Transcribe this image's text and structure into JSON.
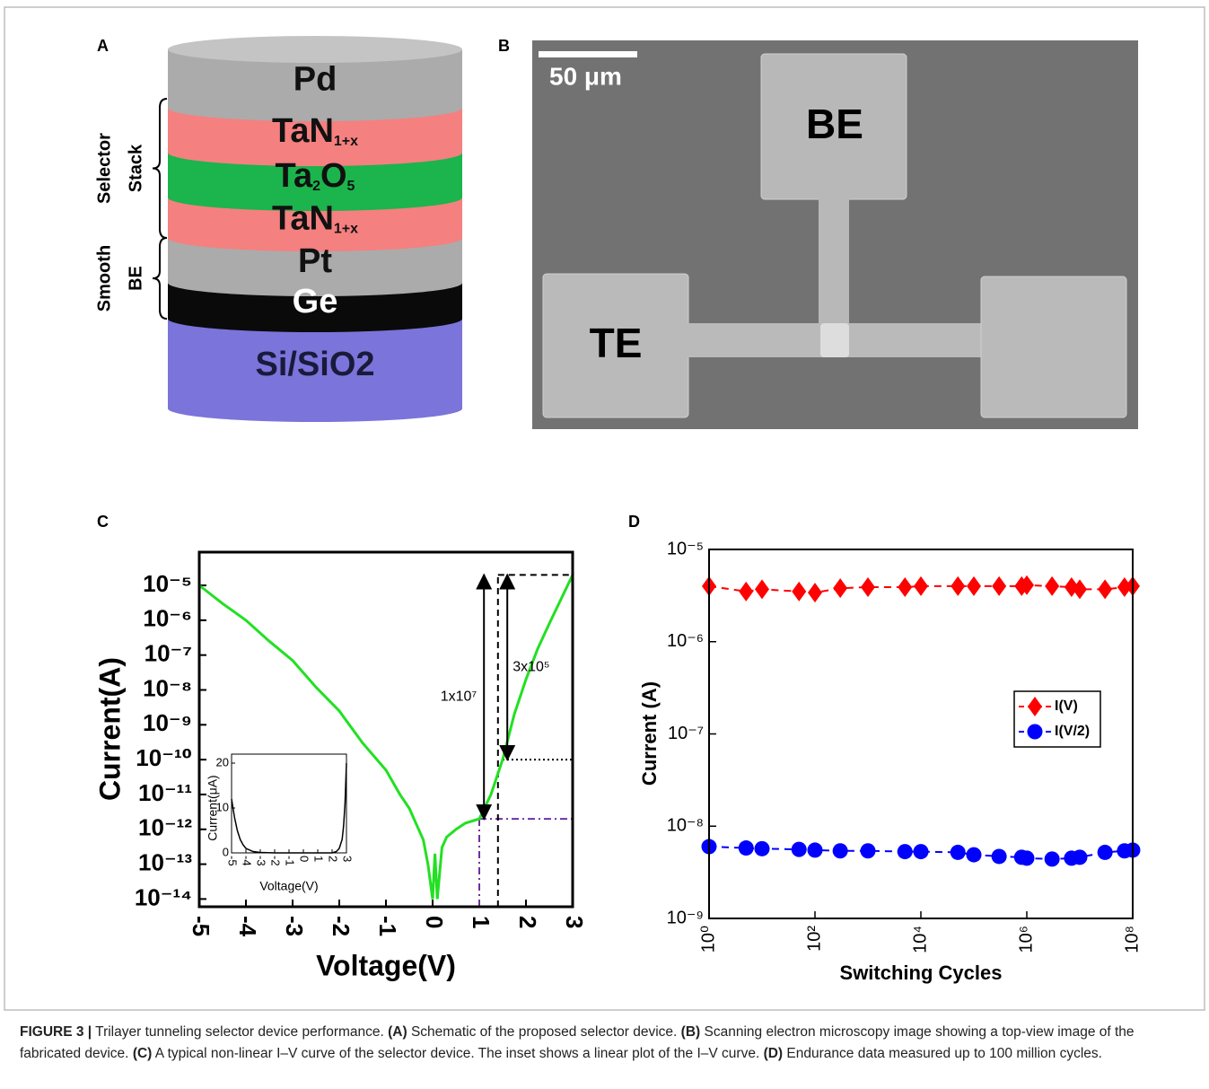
{
  "panel_a": {
    "letter": "A",
    "layers": [
      {
        "parts": [
          "Pd"
        ],
        "color": "#ababab",
        "text_color": "#111111"
      },
      {
        "parts": [
          "TaN",
          "1+x"
        ],
        "color": "#f58080",
        "text_color": "#111111"
      },
      {
        "parts": [
          "Ta",
          "2",
          "O",
          "5"
        ],
        "color": "#1cb44c",
        "text_color": "#111111"
      },
      {
        "parts": [
          "TaN",
          "1+x"
        ],
        "color": "#f58080",
        "text_color": "#111111"
      },
      {
        "parts": [
          "Pt"
        ],
        "color": "#ababab",
        "text_color": "#111111"
      },
      {
        "parts": [
          "Ge"
        ],
        "color": "#0a0a0a",
        "text_color": "#ffffff"
      },
      {
        "parts": [
          "Si/SiO2"
        ],
        "color": "#7b74da",
        "text_color": "#1a1a3a"
      }
    ],
    "braces": [
      {
        "labels": [
          "Selector",
          "Stack"
        ]
      },
      {
        "labels": [
          "Smooth",
          "BE"
        ]
      }
    ]
  },
  "panel_b": {
    "letter": "B",
    "scale_bar": "50 μm",
    "labels": [
      "BE",
      "TE"
    ]
  },
  "chart_data": [
    {
      "type": "line",
      "panel": "C",
      "xlabel": "Voltage(V)",
      "ylabel": "Current(A)",
      "color": "#22e022",
      "log_y": true,
      "x": [
        -5,
        -4.5,
        -4,
        -3.5,
        -3,
        -2.5,
        -2,
        -1.5,
        -1,
        -0.7,
        -0.5,
        -0.3,
        -0.2,
        -0.1,
        0,
        0.05,
        0.1,
        0.2,
        0.3,
        0.5,
        0.7,
        1,
        1.25,
        1.5,
        1.75,
        2,
        2.25,
        2.5,
        2.75,
        3
      ],
      "values": [
        1e-05,
        3e-06,
        1e-06,
        2.5e-07,
        7e-08,
        1.2e-08,
        2.5e-09,
        3e-10,
        5e-11,
        1e-11,
        4e-12,
        1e-12,
        5e-13,
        1e-13,
        1e-14,
        2e-13,
        1e-14,
        3e-13,
        6e-13,
        1e-12,
        1.5e-12,
        2e-12,
        1e-11,
        1e-10,
        2e-09,
        2e-08,
        1.5e-07,
        8e-07,
        4e-06,
        2e-05
      ],
      "xlim": [
        -5,
        3
      ],
      "xticks": [
        -5,
        -4,
        -3,
        -2,
        -1,
        0,
        1,
        2,
        3
      ],
      "ylim": [
        6e-15,
        9e-05
      ],
      "yticks": [
        {
          "value": 1e-14,
          "label": "10⁻¹⁴"
        },
        {
          "value": 1e-13,
          "label": "10⁻¹³"
        },
        {
          "value": 1e-12,
          "label": "10⁻¹²"
        },
        {
          "value": 1e-11,
          "label": "10⁻¹¹"
        },
        {
          "value": 1e-10,
          "label": "10⁻¹⁰"
        },
        {
          "value": 1e-09,
          "label": "10⁻⁹"
        },
        {
          "value": 1e-08,
          "label": "10⁻⁸"
        },
        {
          "value": 1e-07,
          "label": "10⁻⁷"
        },
        {
          "value": 1e-06,
          "label": "10⁻⁶"
        },
        {
          "value": 1e-05,
          "label": "10⁻⁵"
        }
      ],
      "guides": [
        {
          "x": 1,
          "y": 2e-12,
          "color": "#7030a0",
          "style": "dashdot"
        },
        {
          "x": 1.4,
          "y": 2e-05,
          "color": "#000000",
          "style": "dashed"
        },
        {
          "x": 1.5,
          "y": 1e-10,
          "color": "#000000",
          "style": "dotted"
        }
      ],
      "annotations": [
        {
          "text": "1x10⁷",
          "x": 1.1,
          "from": 2e-12,
          "to": 2e-05
        },
        {
          "text": "3x10⁵",
          "x": 1.6,
          "from": 1e-10,
          "to": 2e-05
        }
      ],
      "inset": {
        "type": "line",
        "xlabel": "Voltage(V)",
        "ylabel": "Current(μA)",
        "color": "#000000",
        "x": [
          -5,
          -4.8,
          -4.6,
          -4.4,
          -4.2,
          -4,
          -3.5,
          -3,
          -2,
          0,
          2,
          2.3,
          2.5,
          2.7,
          2.8,
          2.9,
          3
        ],
        "values": [
          12,
          8,
          5,
          3,
          1.8,
          1,
          0.3,
          0.1,
          0,
          0,
          0,
          0.3,
          1,
          3,
          6,
          11,
          20
        ],
        "xlim": [
          -5,
          3
        ],
        "xticks": [
          -5,
          -4,
          -3,
          -2,
          -1,
          0,
          1,
          2,
          3
        ],
        "ylim": [
          0,
          22
        ],
        "yticks": [
          0,
          10,
          20
        ]
      }
    },
    {
      "type": "line",
      "panel": "D",
      "xlabel": "Switching Cycles",
      "ylabel": "Current (A)",
      "log_x": true,
      "log_y": true,
      "legend": "center right",
      "x": [
        1,
        5,
        10,
        50,
        100,
        300,
        1000,
        5000,
        10000,
        50000,
        100000,
        300000,
        800000,
        1000000,
        3000000,
        7000000,
        10000000,
        30000000,
        70000000,
        100000000
      ],
      "series": [
        {
          "name": "I(V)",
          "color": "#ff0000",
          "marker": "diamond",
          "values": [
            4e-06,
            3.5e-06,
            3.7e-06,
            3.5e-06,
            3.4e-06,
            3.8e-06,
            3.9e-06,
            3.9e-06,
            4e-06,
            4e-06,
            4e-06,
            4e-06,
            4e-06,
            4.1e-06,
            4e-06,
            3.9e-06,
            3.7e-06,
            3.7e-06,
            3.9e-06,
            4e-06
          ]
        },
        {
          "name": "I(V/2)",
          "color": "#0000ff",
          "marker": "circle",
          "values": [
            6e-09,
            5.8e-09,
            5.7e-09,
            5.6e-09,
            5.5e-09,
            5.4e-09,
            5.4e-09,
            5.3e-09,
            5.3e-09,
            5.2e-09,
            4.9e-09,
            4.7e-09,
            4.6e-09,
            4.5e-09,
            4.4e-09,
            4.5e-09,
            4.6e-09,
            5.2e-09,
            5.4e-09,
            5.5e-09
          ]
        }
      ],
      "xlim": [
        1,
        100000000
      ],
      "xticks": [
        {
          "value": 1,
          "label": "10⁰"
        },
        {
          "value": 100,
          "label": "10²"
        },
        {
          "value": 10000,
          "label": "10⁴"
        },
        {
          "value": 1000000,
          "label": "10⁶"
        },
        {
          "value": 100000000,
          "label": "10⁸"
        }
      ],
      "ylim": [
        1e-09,
        1e-05
      ],
      "yticks": [
        {
          "value": 1e-09,
          "label": "10⁻⁹"
        },
        {
          "value": 1e-08,
          "label": "10⁻⁸"
        },
        {
          "value": 1e-07,
          "label": "10⁻⁷"
        },
        {
          "value": 1e-06,
          "label": "10⁻⁶"
        },
        {
          "value": 1e-05,
          "label": "10⁻⁵"
        }
      ]
    }
  ],
  "caption": {
    "parts": [
      "FIGURE 3 |",
      "Trilayer tunneling selector device performance.",
      "(A)",
      "Schematic of the proposed selector device.",
      "(B)",
      "Scanning electron microscopy image showing a top-view image of the fabricated device.",
      "(C)",
      "A typical non-linear I–V curve of the selector device. The inset shows a linear plot of the I–V curve.",
      "(D)",
      "Endurance data measured up to 100 million cycles."
    ]
  }
}
